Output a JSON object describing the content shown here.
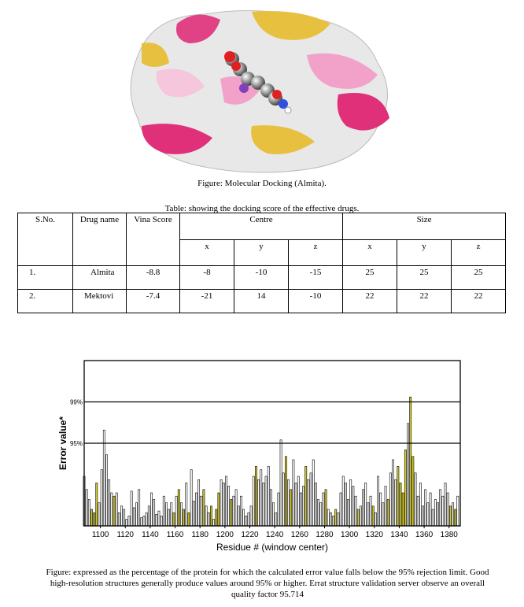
{
  "figure1": {
    "caption": "Figure: Molecular Docking (Almita)."
  },
  "table": {
    "title": "Table: showing the docking score of the effective drugs.",
    "headers": {
      "sno": "S.No.",
      "drug": "Drug name",
      "vina": "Vina Score",
      "centre": "Centre",
      "size": "Size",
      "cx": "x",
      "cy": "y",
      "cz": "z",
      "sx": "x",
      "sy": "y",
      "sz": "z"
    },
    "rows": [
      {
        "sno": "1.",
        "drug": "Almita",
        "vina": "-8.8",
        "cx": "-8",
        "cy": "-10",
        "cz": "-15",
        "sx": "25",
        "sy": "25",
        "sz": "25"
      },
      {
        "sno": "2.",
        "drug": "Mektovi",
        "vina": "-7.4",
        "cx": "-21",
        "cy": "14",
        "cz": "-10",
        "sx": "22",
        "sy": "22",
        "sz": "22"
      }
    ]
  },
  "chart_data": {
    "type": "bar",
    "xlabel": "Residue # (window center)",
    "ylabel": "Error value*",
    "xlim": [
      1087,
      1389
    ],
    "ylim": [
      0,
      100
    ],
    "x_ticks": [
      1100,
      1120,
      1140,
      1160,
      1180,
      1200,
      1220,
      1240,
      1260,
      1280,
      1300,
      1320,
      1340,
      1360,
      1380
    ],
    "thresholds": [
      {
        "label": "99%",
        "value": 75
      },
      {
        "label": "95%",
        "value": 50
      }
    ],
    "colors": {
      "normal": "#ffffff",
      "warning": "#d8d020",
      "outline": "#000000"
    },
    "x": [
      1087,
      1089,
      1091,
      1093,
      1095,
      1097,
      1099,
      1101,
      1103,
      1105,
      1107,
      1109,
      1111,
      1113,
      1115,
      1117,
      1119,
      1121,
      1123,
      1125,
      1127,
      1129,
      1131,
      1133,
      1135,
      1137,
      1139,
      1141,
      1143,
      1145,
      1147,
      1149,
      1151,
      1153,
      1155,
      1157,
      1159,
      1161,
      1163,
      1165,
      1167,
      1169,
      1171,
      1173,
      1175,
      1177,
      1179,
      1181,
      1183,
      1185,
      1187,
      1189,
      1191,
      1193,
      1195,
      1197,
      1199,
      1201,
      1203,
      1205,
      1207,
      1209,
      1211,
      1213,
      1215,
      1217,
      1219,
      1221,
      1223,
      1225,
      1227,
      1229,
      1231,
      1233,
      1235,
      1237,
      1239,
      1241,
      1243,
      1245,
      1247,
      1249,
      1251,
      1253,
      1255,
      1257,
      1259,
      1261,
      1263,
      1265,
      1267,
      1269,
      1271,
      1273,
      1275,
      1277,
      1279,
      1281,
      1283,
      1285,
      1287,
      1289,
      1291,
      1293,
      1295,
      1297,
      1299,
      1301,
      1303,
      1305,
      1307,
      1309,
      1311,
      1313,
      1315,
      1317,
      1319,
      1321,
      1323,
      1325,
      1327,
      1329,
      1331,
      1333,
      1335,
      1337,
      1339,
      1341,
      1343,
      1345,
      1347,
      1349,
      1351,
      1353,
      1355,
      1357,
      1359,
      1361,
      1363,
      1365,
      1367,
      1369,
      1371,
      1373,
      1375,
      1377,
      1379,
      1381,
      1383,
      1385,
      1387
    ],
    "values": [
      30,
      22,
      16,
      10,
      8,
      26,
      14,
      34,
      58,
      43,
      28,
      20,
      18,
      20,
      8,
      12,
      10,
      4,
      6,
      21,
      11,
      14,
      22,
      5,
      6,
      8,
      12,
      20,
      16,
      7,
      9,
      6,
      18,
      14,
      10,
      14,
      8,
      18,
      22,
      14,
      10,
      26,
      8,
      34,
      15,
      20,
      28,
      18,
      22,
      12,
      8,
      12,
      4,
      10,
      20,
      28,
      26,
      30,
      24,
      16,
      18,
      22,
      12,
      18,
      10,
      6,
      8,
      12,
      30,
      36,
      28,
      34,
      26,
      30,
      36,
      22,
      14,
      8,
      20,
      52,
      32,
      42,
      28,
      22,
      40,
      26,
      30,
      20,
      24,
      36,
      28,
      32,
      40,
      26,
      16,
      14,
      20,
      22,
      10,
      8,
      6,
      10,
      8,
      20,
      30,
      26,
      16,
      28,
      24,
      18,
      10,
      12,
      22,
      26,
      14,
      18,
      12,
      8,
      30,
      20,
      14,
      24,
      16,
      32,
      40,
      28,
      36,
      26,
      20,
      46,
      62,
      78,
      42,
      32,
      18,
      26,
      12,
      22,
      14,
      20,
      10,
      16,
      14,
      22,
      18,
      26,
      20,
      12,
      14,
      10,
      18
    ],
    "highlight": [
      1093,
      1095,
      1097,
      1111,
      1159,
      1163,
      1167,
      1171,
      1183,
      1189,
      1193,
      1195,
      1205,
      1225,
      1249,
      1253,
      1265,
      1281,
      1289,
      1307,
      1319,
      1331,
      1339,
      1341,
      1343,
      1345,
      1349,
      1351,
      1381,
      1385
    ]
  },
  "figure2": {
    "caption_lines": [
      "Figure: expressed as the percentage of the protein for which the calculated error value falls below the 95% rejection limit.  Good",
      "high-resolution structures generally produce values around 95% or higher. Errat structure validation server observe an overall",
      "quality factor 95.714"
    ]
  }
}
